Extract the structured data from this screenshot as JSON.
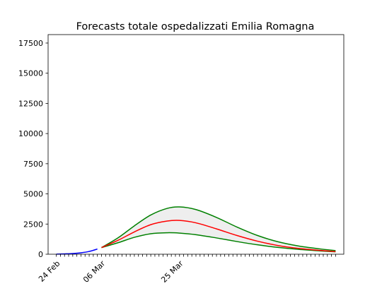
{
  "chart_data": {
    "type": "line",
    "title": "Forecasts totale ospedalizzati Emilia Romagna",
    "xlabel": "",
    "ylabel": "",
    "x_axis": {
      "type": "date",
      "start": "2020-02-22",
      "end": "2020-05-04",
      "tick_labels": [
        {
          "date": "2020-02-24",
          "label": "24 Feb"
        },
        {
          "date": "2020-03-06",
          "label": "06 Mar"
        },
        {
          "date": "2020-03-25",
          "label": "25 Mar"
        }
      ]
    },
    "y_axis": {
      "range": [
        0,
        18200
      ],
      "ticks": [
        0,
        2500,
        5000,
        7500,
        10000,
        12500,
        15000,
        17500
      ]
    },
    "grid": false,
    "series": [
      {
        "role": "observed",
        "color": "#0000ff",
        "x": [
          "2020-02-24",
          "2020-02-26",
          "2020-02-28",
          "2020-03-01",
          "2020-03-03",
          "2020-03-05"
        ],
        "values": [
          10,
          30,
          60,
          120,
          230,
          430
        ]
      },
      {
        "role": "forecast-central",
        "color": "#ff0000",
        "x": [
          "2020-03-06",
          "2020-03-10",
          "2020-03-14",
          "2020-03-18",
          "2020-03-22",
          "2020-03-25",
          "2020-03-29",
          "2020-04-03",
          "2020-04-08",
          "2020-04-13",
          "2020-04-18",
          "2020-04-23",
          "2020-04-28",
          "2020-05-02"
        ],
        "values": [
          550,
          1150,
          1850,
          2450,
          2750,
          2800,
          2600,
          2100,
          1550,
          1080,
          720,
          480,
          320,
          220
        ]
      },
      {
        "role": "forecast-upper",
        "color": "#008000",
        "x": [
          "2020-03-06",
          "2020-03-10",
          "2020-03-14",
          "2020-03-18",
          "2020-03-22",
          "2020-03-25",
          "2020-03-29",
          "2020-04-03",
          "2020-04-08",
          "2020-04-13",
          "2020-04-18",
          "2020-04-23",
          "2020-04-28",
          "2020-05-02"
        ],
        "values": [
          550,
          1350,
          2350,
          3250,
          3800,
          3920,
          3700,
          3050,
          2250,
          1550,
          1030,
          680,
          450,
          300
        ]
      },
      {
        "role": "forecast-lower",
        "color": "#008000",
        "x": [
          "2020-03-06",
          "2020-03-10",
          "2020-03-14",
          "2020-03-18",
          "2020-03-22",
          "2020-03-25",
          "2020-03-29",
          "2020-04-03",
          "2020-04-08",
          "2020-04-13",
          "2020-04-18",
          "2020-04-23",
          "2020-04-28",
          "2020-05-02"
        ],
        "values": [
          550,
          950,
          1400,
          1700,
          1780,
          1750,
          1620,
          1350,
          1050,
          780,
          560,
          400,
          280,
          200
        ]
      }
    ],
    "band": {
      "between": [
        "forecast-upper",
        "forecast-lower"
      ],
      "fill": "#eeeeee"
    }
  }
}
